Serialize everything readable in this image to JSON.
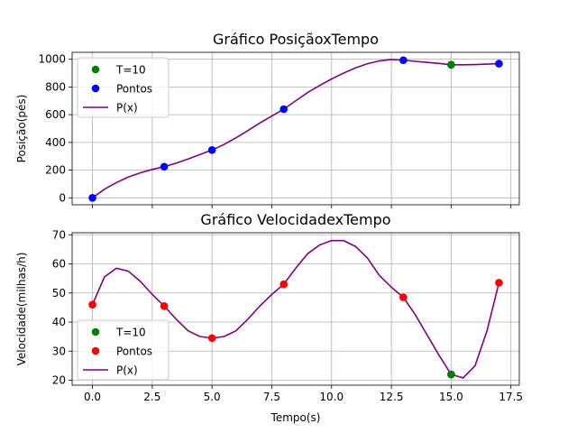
{
  "chart_data": [
    {
      "type": "scatter",
      "title": "Gráfico PosiçãoxTempo",
      "xlabel": "",
      "ylabel": "Posição(pés)",
      "xlim": [
        -0.85,
        17.85
      ],
      "ylim": [
        -50,
        1050
      ],
      "xticks": [
        0,
        2.5,
        5,
        7.5,
        10,
        12.5,
        15,
        17.5
      ],
      "xtick_labels": [],
      "yticks": [
        0,
        200,
        400,
        600,
        800,
        1000
      ],
      "ytick_labels": [
        "0",
        "200",
        "400",
        "600",
        "800",
        "1000"
      ],
      "grid": true,
      "legend_position": "top-left",
      "legend": [
        "T=10",
        "Pontos",
        "P(x)"
      ],
      "series": [
        {
          "name": "T=10",
          "kind": "scatter",
          "color": "#008000",
          "x": [
            15
          ],
          "y": [
            960
          ]
        },
        {
          "name": "Pontos",
          "kind": "scatter",
          "color": "#0000ff",
          "x": [
            0,
            3,
            5,
            8,
            13,
            15,
            17
          ],
          "y": [
            0,
            225,
            345,
            640,
            993,
            960,
            968
          ]
        },
        {
          "name": "P(x)",
          "kind": "line",
          "color": "#800080",
          "x": [
            0,
            0.5,
            1,
            1.5,
            2,
            2.5,
            3,
            3.5,
            4,
            4.5,
            5,
            5.5,
            6,
            6.5,
            7,
            7.5,
            8,
            8.5,
            9,
            9.5,
            10,
            10.5,
            11,
            11.5,
            12,
            12.5,
            13,
            13.5,
            14,
            14.5,
            15,
            15.5,
            16,
            16.5,
            17
          ],
          "y": [
            0,
            62,
            110,
            150,
            180,
            205,
            225,
            250,
            280,
            313,
            345,
            385,
            433,
            485,
            540,
            590,
            640,
            700,
            760,
            810,
            858,
            900,
            938,
            968,
            988,
            998,
            993,
            985,
            977,
            970,
            960,
            960,
            962,
            965,
            968
          ]
        }
      ]
    },
    {
      "type": "scatter",
      "title": "Gráfico VelocidadexTempo",
      "xlabel": "Tempo(s)",
      "ylabel": "Velocidade(milhas/h)",
      "xlim": [
        -0.85,
        17.85
      ],
      "ylim": [
        18.3,
        70.7
      ],
      "xticks": [
        0,
        2.5,
        5,
        7.5,
        10,
        12.5,
        15,
        17.5
      ],
      "xtick_labels": [
        "0.0",
        "2.5",
        "5.0",
        "7.5",
        "10.0",
        "12.5",
        "15.0",
        "17.5"
      ],
      "yticks": [
        20,
        30,
        40,
        50,
        60,
        70
      ],
      "ytick_labels": [
        "20",
        "30",
        "40",
        "50",
        "60",
        "70"
      ],
      "grid": true,
      "legend_position": "bottom-left",
      "legend": [
        "T=10",
        "Pontos",
        "P(x)"
      ],
      "series": [
        {
          "name": "T=10",
          "kind": "scatter",
          "color": "#008000",
          "x": [
            15
          ],
          "y": [
            22
          ]
        },
        {
          "name": "Pontos",
          "kind": "scatter",
          "color": "#ff0000",
          "x": [
            0,
            3,
            5,
            8,
            13,
            15,
            17
          ],
          "y": [
            46,
            45.5,
            34.5,
            53,
            48.5,
            22,
            53.5
          ]
        },
        {
          "name": "P(x)",
          "kind": "line",
          "color": "#800080",
          "x": [
            0,
            0.5,
            1,
            1.5,
            2,
            2.5,
            3,
            3.5,
            4,
            4.5,
            5,
            5.5,
            6,
            6.5,
            7,
            7.5,
            8,
            8.5,
            9,
            9.5,
            10,
            10.5,
            11,
            11.5,
            12,
            12.5,
            13,
            13.5,
            14,
            14.5,
            15,
            15.5,
            16,
            16.5,
            17
          ],
          "y": [
            46,
            55.5,
            58.5,
            57.5,
            54,
            49.5,
            45.5,
            41,
            37,
            35,
            34.5,
            35,
            37,
            41,
            45.5,
            49.5,
            53,
            58.5,
            63.5,
            66.5,
            68,
            68,
            66,
            62,
            56,
            52,
            48.5,
            42.5,
            35.5,
            28.5,
            22,
            20.8,
            25,
            37,
            53.5
          ]
        }
      ]
    }
  ]
}
